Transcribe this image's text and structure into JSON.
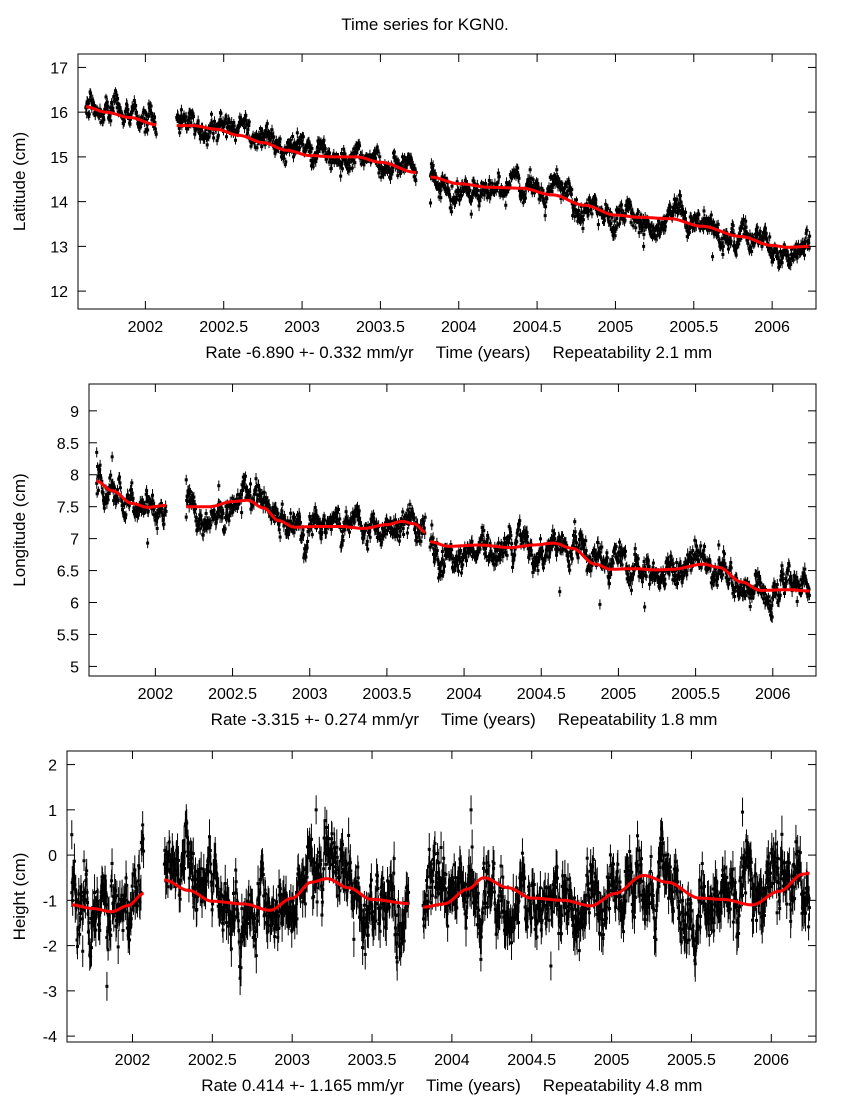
{
  "title": "Time series for KGN0.",
  "chart_data": [
    {
      "type": "scatter",
      "name": "latitude",
      "ylabel": "Latitude (cm)",
      "xlabel": "Time (years)",
      "rate_text": "Rate -6.890 +- 0.332 mm/yr",
      "time_text": "Time (years)",
      "repeatability_text": "Repeatability 2.1 mm",
      "xlim": [
        2001.57,
        2006.28
      ],
      "ylim": [
        11.6,
        17.3
      ],
      "xticks": [
        2002,
        2002.5,
        2003,
        2003.5,
        2004,
        2004.5,
        2005,
        2005.5,
        2006
      ],
      "xtick_labels": [
        "2002",
        "2002.5",
        "2003",
        "2003.5",
        "2004",
        "2004.5",
        "2005",
        "2005.5",
        "2006"
      ],
      "yticks": [
        12,
        13,
        14,
        15,
        16,
        17
      ],
      "ytick_labels": [
        "12",
        "13",
        "14",
        "15",
        "16",
        "17"
      ],
      "segments": [
        [
          2001.62,
          2002.07
        ],
        [
          2002.2,
          2003.73
        ],
        [
          2003.82,
          2006.24
        ]
      ],
      "noise_cm": 0.17,
      "errbar_cm": 0.1,
      "fit_color": "#ff0000",
      "point_color": "#000000",
      "fit": [
        [
          [
            2001.62,
            16.12
          ],
          [
            2001.75,
            16.0
          ],
          [
            2001.9,
            15.88
          ],
          [
            2002.07,
            15.72
          ]
        ],
        [
          [
            2002.2,
            15.7
          ],
          [
            2002.3,
            15.7
          ],
          [
            2002.45,
            15.62
          ],
          [
            2002.6,
            15.48
          ],
          [
            2002.75,
            15.32
          ],
          [
            2002.9,
            15.15
          ],
          [
            2003.05,
            15.03
          ],
          [
            2003.2,
            15.0
          ],
          [
            2003.35,
            15.0
          ],
          [
            2003.5,
            14.88
          ],
          [
            2003.73,
            14.65
          ]
        ],
        [
          [
            2003.82,
            14.55
          ],
          [
            2004.0,
            14.4
          ],
          [
            2004.2,
            14.32
          ],
          [
            2004.4,
            14.3
          ],
          [
            2004.6,
            14.15
          ],
          [
            2004.8,
            13.92
          ],
          [
            2005.0,
            13.7
          ],
          [
            2005.15,
            13.65
          ],
          [
            2005.35,
            13.62
          ],
          [
            2005.55,
            13.45
          ],
          [
            2005.8,
            13.22
          ],
          [
            2006.0,
            13.02
          ],
          [
            2006.1,
            12.98
          ],
          [
            2006.24,
            13.0
          ]
        ]
      ],
      "outliers": [
        [
          2003.82,
          13.97
        ],
        [
          2004.3,
          13.92
        ],
        [
          2004.08,
          13.72
        ],
        [
          2005.18,
          13.0
        ],
        [
          2005.62,
          12.77
        ],
        [
          2006.0,
          12.65
        ]
      ]
    },
    {
      "type": "scatter",
      "name": "longitude",
      "ylabel": "Longitude (cm)",
      "xlabel": "Time (years)",
      "rate_text": "Rate -3.315 +- 0.274 mm/yr",
      "time_text": "Time (years)",
      "repeatability_text": "Repeatability 1.8 mm",
      "xlim": [
        2001.57,
        2006.28
      ],
      "ylim": [
        4.85,
        9.42
      ],
      "xticks": [
        2002,
        2002.5,
        2003,
        2003.5,
        2004,
        2004.5,
        2005,
        2005.5,
        2006
      ],
      "xtick_labels": [
        "2002",
        "2002.5",
        "2003",
        "2003.5",
        "2004",
        "2004.5",
        "2005",
        "2005.5",
        "2006"
      ],
      "yticks": [
        5,
        5.5,
        6,
        6.5,
        7,
        7.5,
        8,
        8.5,
        9
      ],
      "ytick_labels": [
        "5",
        "5.5",
        "6",
        "6.5",
        "7",
        "7.5",
        "8",
        "8.5",
        "9"
      ],
      "segments": [
        [
          2001.62,
          2002.07
        ],
        [
          2002.2,
          2003.75
        ],
        [
          2003.78,
          2006.24
        ]
      ],
      "noise_cm": 0.14,
      "errbar_cm": 0.08,
      "fit_color": "#ff0000",
      "point_color": "#000000",
      "fit": [
        [
          [
            2001.62,
            7.9
          ],
          [
            2001.72,
            7.75
          ],
          [
            2001.85,
            7.55
          ],
          [
            2001.95,
            7.49
          ],
          [
            2002.07,
            7.52
          ]
        ],
        [
          [
            2002.2,
            7.5
          ],
          [
            2002.35,
            7.5
          ],
          [
            2002.5,
            7.58
          ],
          [
            2002.6,
            7.6
          ],
          [
            2002.7,
            7.48
          ],
          [
            2002.8,
            7.28
          ],
          [
            2002.9,
            7.18
          ],
          [
            2003.05,
            7.19
          ],
          [
            2003.2,
            7.19
          ],
          [
            2003.35,
            7.16
          ],
          [
            2003.5,
            7.22
          ],
          [
            2003.6,
            7.27
          ],
          [
            2003.68,
            7.23
          ],
          [
            2003.75,
            7.1
          ]
        ],
        [
          [
            2003.78,
            6.95
          ],
          [
            2003.9,
            6.88
          ],
          [
            2004.1,
            6.9
          ],
          [
            2004.3,
            6.86
          ],
          [
            2004.45,
            6.9
          ],
          [
            2004.58,
            6.93
          ],
          [
            2004.7,
            6.85
          ],
          [
            2004.85,
            6.6
          ],
          [
            2004.95,
            6.52
          ],
          [
            2005.1,
            6.53
          ],
          [
            2005.25,
            6.51
          ],
          [
            2005.35,
            6.52
          ],
          [
            2005.55,
            6.6
          ],
          [
            2005.65,
            6.55
          ],
          [
            2005.8,
            6.32
          ],
          [
            2005.92,
            6.19
          ],
          [
            2006.1,
            6.2
          ],
          [
            2006.24,
            6.18
          ]
        ]
      ],
      "outliers": [
        [
          2001.62,
          8.35
        ],
        [
          2001.72,
          8.28
        ],
        [
          2001.95,
          6.93
        ],
        [
          2002.2,
          7.92
        ],
        [
          2004.62,
          6.17
        ],
        [
          2004.88,
          5.97
        ],
        [
          2005.17,
          5.93
        ],
        [
          2005.65,
          6.9
        ]
      ]
    },
    {
      "type": "scatter",
      "name": "height",
      "ylabel": "Height (cm)",
      "xlabel": "Time (years)",
      "rate_text": "Rate 0.414 +- 1.165 mm/yr",
      "time_text": "Time (years)",
      "repeatability_text": "Repeatability 4.8 mm",
      "xlim": [
        2001.59,
        2006.28
      ],
      "ylim": [
        -4.13,
        2.3
      ],
      "xticks": [
        2002,
        2002.5,
        2003,
        2003.5,
        2004,
        2004.5,
        2005,
        2005.5,
        2006
      ],
      "xtick_labels": [
        "2002",
        "2002.5",
        "2003",
        "2003.5",
        "2004",
        "2004.5",
        "2005",
        "2005.5",
        "2006"
      ],
      "yticks": [
        -4,
        -3,
        -2,
        -1,
        0,
        1,
        2
      ],
      "ytick_labels": [
        "-4",
        "-3",
        "-2",
        "-1",
        "0",
        "1",
        "2"
      ],
      "segments": [
        [
          2001.62,
          2002.07
        ],
        [
          2002.2,
          2003.73
        ],
        [
          2003.82,
          2006.24
        ]
      ],
      "noise_cm": 0.45,
      "errbar_cm": 0.32,
      "fit_color": "#ff0000",
      "point_color": "#000000",
      "fit": [
        [
          [
            2001.62,
            -1.1
          ],
          [
            2001.75,
            -1.18
          ],
          [
            2001.87,
            -1.25
          ],
          [
            2001.97,
            -1.12
          ],
          [
            2002.07,
            -0.85
          ]
        ],
        [
          [
            2002.2,
            -0.55
          ],
          [
            2002.35,
            -0.78
          ],
          [
            2002.5,
            -1.02
          ],
          [
            2002.7,
            -1.08
          ],
          [
            2002.86,
            -1.22
          ],
          [
            2003.0,
            -0.95
          ],
          [
            2003.12,
            -0.6
          ],
          [
            2003.22,
            -0.52
          ],
          [
            2003.35,
            -0.72
          ],
          [
            2003.5,
            -0.98
          ],
          [
            2003.73,
            -1.07
          ]
        ],
        [
          [
            2003.82,
            -1.15
          ],
          [
            2003.95,
            -1.08
          ],
          [
            2004.1,
            -0.75
          ],
          [
            2004.2,
            -0.5
          ],
          [
            2004.35,
            -0.72
          ],
          [
            2004.5,
            -0.95
          ],
          [
            2004.7,
            -1.0
          ],
          [
            2004.87,
            -1.12
          ],
          [
            2005.02,
            -0.85
          ],
          [
            2005.2,
            -0.45
          ],
          [
            2005.35,
            -0.6
          ],
          [
            2005.55,
            -0.95
          ],
          [
            2005.7,
            -0.98
          ],
          [
            2005.88,
            -1.1
          ],
          [
            2006.05,
            -0.8
          ],
          [
            2006.2,
            -0.42
          ],
          [
            2006.24,
            -0.4
          ]
        ]
      ],
      "outliers": [
        [
          2001.62,
          0.45
        ],
        [
          2001.84,
          -2.9
        ],
        [
          2003.15,
          1.0
        ],
        [
          2004.12,
          1.0
        ],
        [
          2004.62,
          -2.45
        ],
        [
          2005.82,
          0.95
        ]
      ]
    }
  ]
}
